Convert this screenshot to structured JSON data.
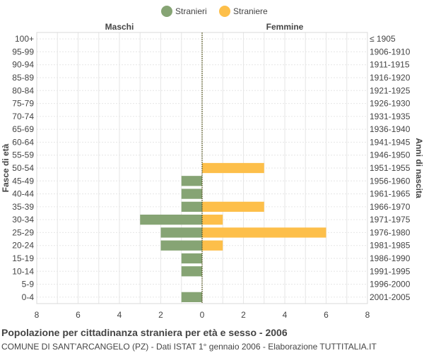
{
  "chart_data": {
    "type": "bar",
    "orientation": "horizontal-pyramid",
    "legend": [
      {
        "name": "Stranieri",
        "color": "#86a474"
      },
      {
        "name": "Straniere",
        "color": "#fdbf4a"
      }
    ],
    "legend_position": "top",
    "left_header": "Maschi",
    "right_header": "Femmine",
    "ylabel_left": "Fasce di età",
    "ylabel_right": "Anni di nascita",
    "x_range": [
      -8,
      8
    ],
    "x_ticks": [
      8,
      6,
      4,
      2,
      0,
      2,
      4,
      6,
      8
    ],
    "grid": true,
    "categories": [
      "100+",
      "95-99",
      "90-94",
      "85-89",
      "80-84",
      "75-79",
      "70-74",
      "65-69",
      "60-64",
      "55-59",
      "50-54",
      "45-49",
      "40-44",
      "35-39",
      "30-34",
      "25-29",
      "20-24",
      "15-19",
      "10-14",
      "5-9",
      "0-4"
    ],
    "birth_years": [
      "≤ 1905",
      "1906-1910",
      "1911-1915",
      "1916-1920",
      "1921-1925",
      "1926-1930",
      "1931-1935",
      "1936-1940",
      "1941-1945",
      "1946-1950",
      "1951-1955",
      "1956-1960",
      "1961-1965",
      "1966-1970",
      "1971-1975",
      "1976-1980",
      "1981-1985",
      "1986-1990",
      "1991-1995",
      "1996-2000",
      "2001-2005"
    ],
    "series": [
      {
        "name": "Stranieri",
        "values": [
          0,
          0,
          0,
          0,
          0,
          0,
          0,
          0,
          0,
          0,
          0,
          1,
          1,
          1,
          3,
          2,
          2,
          1,
          1,
          0,
          1
        ]
      },
      {
        "name": "Straniere",
        "values": [
          0,
          0,
          0,
          0,
          0,
          0,
          0,
          0,
          0,
          0,
          3,
          0,
          0,
          3,
          1,
          6,
          1,
          0,
          0,
          0,
          0
        ]
      }
    ]
  },
  "footer": {
    "title": "Popolazione per cittadinanza straniera per età e sesso - 2006",
    "subtitle": "COMUNE DI SANT'ARCANGELO (PZ) - Dati ISTAT 1° gennaio 2006 - Elaborazione TUTTITALIA.IT"
  }
}
